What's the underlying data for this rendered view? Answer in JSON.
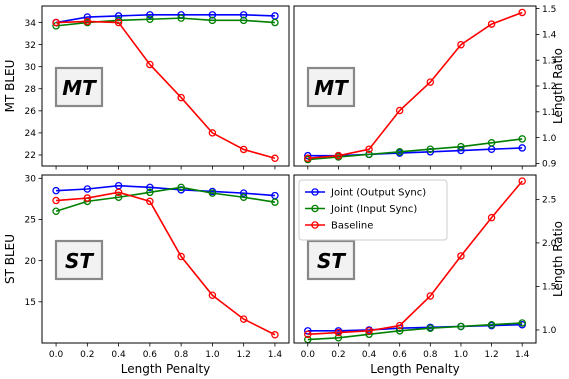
{
  "chart_data": [
    {
      "type": "line",
      "panel": "top-left",
      "watermark": "MT",
      "x": [
        0.0,
        0.2,
        0.4,
        0.6,
        0.8,
        1.0,
        1.2,
        1.4
      ],
      "x_tick_labels": [],
      "xlabel": "",
      "ylabel": "MT BLEU",
      "ylabel_side": "left",
      "ylim": [
        21,
        35.5
      ],
      "y_ticks": [
        22,
        24,
        26,
        28,
        30,
        32,
        34
      ],
      "grid": false,
      "series": [
        {
          "name": "Joint (Output Sync)",
          "color": "#0000ff",
          "values": [
            34.0,
            34.5,
            34.6,
            34.7,
            34.7,
            34.7,
            34.7,
            34.6
          ]
        },
        {
          "name": "Joint (Input Sync)",
          "color": "#008000",
          "values": [
            33.7,
            34.0,
            34.2,
            34.3,
            34.4,
            34.2,
            34.2,
            34.0
          ]
        },
        {
          "name": "Baseline",
          "color": "#ff0000",
          "values": [
            34.0,
            34.1,
            34.0,
            30.2,
            27.2,
            24.0,
            22.5,
            21.7
          ]
        }
      ]
    },
    {
      "type": "line",
      "panel": "top-right",
      "watermark": "MT",
      "x": [
        0.0,
        0.2,
        0.4,
        0.6,
        0.8,
        1.0,
        1.2,
        1.4
      ],
      "x_tick_labels": [],
      "xlabel": "",
      "ylabel": "Length Ratio",
      "ylabel_side": "right",
      "ylim": [
        0.89,
        1.51
      ],
      "y_ticks": [
        0.9,
        1.0,
        1.1,
        1.2,
        1.3,
        1.4,
        1.5
      ],
      "grid": false,
      "series": [
        {
          "name": "Joint (Output Sync)",
          "color": "#0000ff",
          "values": [
            0.93,
            0.93,
            0.935,
            0.94,
            0.945,
            0.95,
            0.955,
            0.96
          ]
        },
        {
          "name": "Joint (Input Sync)",
          "color": "#008000",
          "values": [
            0.915,
            0.925,
            0.935,
            0.945,
            0.955,
            0.965,
            0.98,
            0.995
          ]
        },
        {
          "name": "Baseline",
          "color": "#ff0000",
          "values": [
            0.92,
            0.93,
            0.955,
            1.105,
            1.215,
            1.36,
            1.44,
            1.485
          ]
        }
      ]
    },
    {
      "type": "line",
      "panel": "bottom-left",
      "watermark": "ST",
      "x": [
        0.0,
        0.2,
        0.4,
        0.6,
        0.8,
        1.0,
        1.2,
        1.4
      ],
      "x_tick_labels": [
        "0.0",
        "0.2",
        "0.4",
        "0.6",
        "0.8",
        "1.0",
        "1.2",
        "1.4"
      ],
      "xlabel": "Length Penalty",
      "ylabel": "ST BLEU",
      "ylabel_side": "left",
      "ylim": [
        10,
        30.4
      ],
      "y_ticks": [
        15,
        20,
        25,
        30
      ],
      "grid": false,
      "series": [
        {
          "name": "Joint (Output Sync)",
          "color": "#0000ff",
          "values": [
            28.5,
            28.7,
            29.1,
            28.9,
            28.6,
            28.4,
            28.2,
            27.9
          ]
        },
        {
          "name": "Joint (Input Sync)",
          "color": "#008000",
          "values": [
            26.0,
            27.2,
            27.7,
            28.3,
            28.9,
            28.2,
            27.7,
            27.1
          ]
        },
        {
          "name": "Baseline",
          "color": "#ff0000",
          "values": [
            27.3,
            27.6,
            28.3,
            27.2,
            20.5,
            15.8,
            12.9,
            11.0
          ]
        }
      ]
    },
    {
      "type": "line",
      "panel": "bottom-right",
      "watermark": "ST",
      "x": [
        0.0,
        0.2,
        0.4,
        0.6,
        0.8,
        1.0,
        1.2,
        1.4
      ],
      "x_tick_labels": [
        "0.0",
        "0.2",
        "0.4",
        "0.6",
        "0.8",
        "1.0",
        "1.2",
        "1.4"
      ],
      "xlabel": "Length Penalty",
      "ylabel": "Length Ratio",
      "ylabel_side": "right",
      "ylim": [
        0.85,
        2.78
      ],
      "y_ticks": [
        1.0,
        1.5,
        2.0,
        2.5
      ],
      "grid": false,
      "legend": {
        "placement": "top-left",
        "entries": [
          "Joint (Output Sync)",
          "Joint (Input Sync)",
          "Baseline"
        ]
      },
      "series": [
        {
          "name": "Joint (Output Sync)",
          "color": "#0000ff",
          "values": [
            0.99,
            0.99,
            1.0,
            1.02,
            1.03,
            1.04,
            1.05,
            1.06
          ]
        },
        {
          "name": "Joint (Input Sync)",
          "color": "#008000",
          "values": [
            0.89,
            0.91,
            0.95,
            0.99,
            1.02,
            1.04,
            1.06,
            1.08
          ]
        },
        {
          "name": "Baseline",
          "color": "#ff0000",
          "values": [
            0.95,
            0.97,
            0.99,
            1.05,
            1.39,
            1.85,
            2.29,
            2.71
          ]
        }
      ]
    }
  ]
}
